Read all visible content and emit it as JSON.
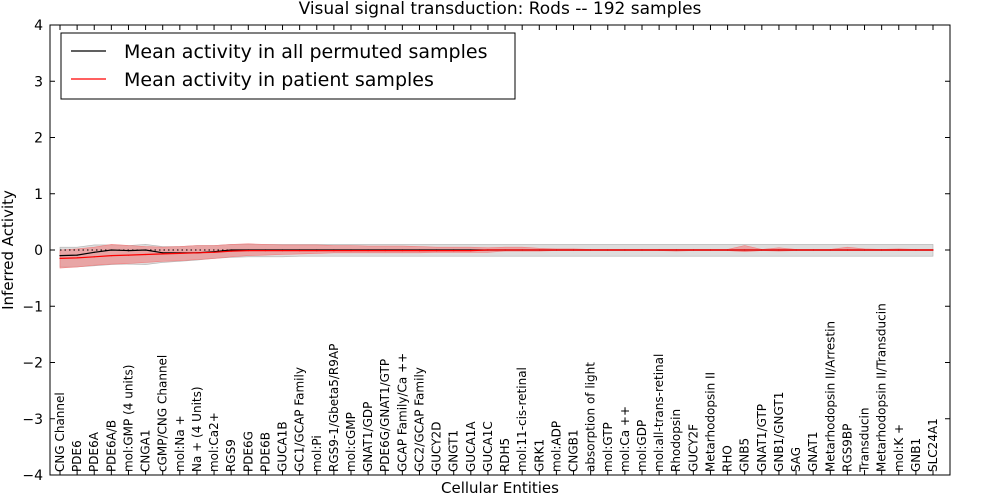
{
  "chart_data": {
    "type": "line",
    "title": "Visual signal transduction: Rods -- 192 samples",
    "xlabel": "Cellular Entities",
    "ylabel": "Inferred Activity",
    "ylim": [
      -4,
      4
    ],
    "yticks": [
      -4,
      -3,
      -2,
      -1,
      0,
      1,
      2,
      3,
      4
    ],
    "ytick_labels": [
      "−4",
      "−3",
      "−2",
      "−1",
      "0",
      "1",
      "2",
      "3",
      "4"
    ],
    "legend_position": "upper-left",
    "categories": [
      "CNG Channel",
      "PDE6",
      "PDE6A",
      "PDE6A/B",
      "mol:GMP (4 units)",
      "CNGA1",
      "cGMP/CNG Channel",
      "mol:Na +",
      "Na + (4 Units)",
      "mol:Ca2+",
      "RGS9",
      "PDE6G",
      "PDE6B",
      "GUCA1B",
      "GC1/GCAP Family",
      "mol:Pi",
      "RGS9-1/Gbeta5/R9AP",
      "mol:cGMP",
      "GNAT1/GDP",
      "PDE6G/GNAT1/GTP",
      "GCAP Family/Ca ++",
      "GC2/GCAP Family",
      "GUCY2D",
      "GNGT1",
      "GUCA1A",
      "GUCA1C",
      "RDH5",
      "mol:11-cis-retinal",
      "GRK1",
      "mol:ADP",
      "CNGB1",
      "absorption of light",
      "mol:GTP",
      "mol:Ca ++",
      "mol:GDP",
      "mol:all-trans-retinal",
      "Rhodopsin",
      "GUCY2F",
      "Metarhodopsin II",
      "RHO",
      "GNB5",
      "GNAT1/GTP",
      "GNB1/GNGT1",
      "SAG",
      "GNAT1",
      "Metarhodopsin II/Arrestin",
      "RGS9BP",
      "Transducin",
      "Metarhodopsin II/Transducin",
      "mol:K +",
      "GNB1",
      "SLC24A1"
    ],
    "series": [
      {
        "name": "Mean activity in all permuted samples",
        "color": "#000000",
        "values": [
          -0.1,
          -0.09,
          -0.04,
          0.0,
          -0.01,
          0.0,
          -0.05,
          -0.05,
          -0.05,
          -0.03,
          0.0,
          0.0,
          0.0,
          0.0,
          0.0,
          0.0,
          0.0,
          0.0,
          0.0,
          0.0,
          0.0,
          0.0,
          0.0,
          0.0,
          0.0,
          0.0,
          0.0,
          0.0,
          0.0,
          0.0,
          0.0,
          0.0,
          0.0,
          0.0,
          0.0,
          0.0,
          0.0,
          0.0,
          0.0,
          0.0,
          0.0,
          0.0,
          0.0,
          0.0,
          0.0,
          0.0,
          0.0,
          0.0,
          0.0,
          0.0,
          0.0,
          0.0
        ],
        "band_lower": [
          -0.3,
          -0.3,
          -0.28,
          -0.26,
          -0.25,
          -0.26,
          -0.22,
          -0.2,
          -0.18,
          -0.15,
          -0.13,
          -0.12,
          -0.12,
          -0.12,
          -0.11,
          -0.11,
          -0.11,
          -0.11,
          -0.11,
          -0.11,
          -0.11,
          -0.11,
          -0.11,
          -0.11,
          -0.11,
          -0.11,
          -0.11,
          -0.11,
          -0.11,
          -0.11,
          -0.11,
          -0.11,
          -0.11,
          -0.11,
          -0.11,
          -0.11,
          -0.11,
          -0.11,
          -0.11,
          -0.11,
          -0.11,
          -0.11,
          -0.11,
          -0.11,
          -0.11,
          -0.11,
          -0.11,
          -0.11,
          -0.11,
          -0.11,
          -0.11,
          -0.11
        ],
        "band_upper": [
          0.05,
          0.05,
          0.09,
          0.09,
          0.08,
          0.1,
          0.06,
          0.06,
          0.08,
          0.08,
          0.1,
          0.1,
          0.1,
          0.1,
          0.1,
          0.1,
          0.1,
          0.1,
          0.1,
          0.1,
          0.1,
          0.1,
          0.1,
          0.1,
          0.1,
          0.1,
          0.1,
          0.1,
          0.1,
          0.1,
          0.1,
          0.1,
          0.1,
          0.1,
          0.1,
          0.1,
          0.1,
          0.1,
          0.1,
          0.1,
          0.1,
          0.1,
          0.1,
          0.1,
          0.1,
          0.1,
          0.1,
          0.1,
          0.1,
          0.1,
          0.1,
          0.1
        ],
        "band_color": "#b3b3b3"
      },
      {
        "name": "Mean activity in patient samples",
        "color": "#ff0000",
        "values": [
          -0.15,
          -0.14,
          -0.12,
          -0.1,
          -0.09,
          -0.08,
          -0.07,
          -0.06,
          -0.05,
          -0.04,
          -0.02,
          -0.01,
          -0.01,
          -0.01,
          -0.01,
          -0.01,
          -0.01,
          -0.01,
          -0.01,
          -0.01,
          -0.01,
          -0.01,
          -0.01,
          -0.01,
          -0.01,
          0.0,
          0.0,
          0.0,
          0.0,
          0.0,
          0.0,
          0.0,
          0.0,
          0.0,
          0.0,
          0.0,
          0.0,
          0.0,
          0.0,
          0.0,
          0.0,
          0.0,
          0.0,
          0.0,
          0.0,
          0.0,
          0.0,
          0.0,
          0.0,
          0.0,
          0.0,
          0.0
        ],
        "band_lower": [
          -0.32,
          -0.3,
          -0.27,
          -0.25,
          -0.24,
          -0.22,
          -0.2,
          -0.19,
          -0.17,
          -0.15,
          -0.12,
          -0.1,
          -0.09,
          -0.08,
          -0.07,
          -0.06,
          -0.05,
          -0.05,
          -0.05,
          -0.05,
          -0.05,
          -0.05,
          -0.04,
          -0.04,
          -0.04,
          -0.04,
          -0.02,
          -0.02,
          -0.02,
          -0.01,
          -0.01,
          -0.01,
          -0.01,
          -0.01,
          -0.01,
          -0.01,
          -0.02,
          -0.01,
          -0.01,
          -0.01,
          -0.03,
          -0.01,
          -0.02,
          -0.01,
          -0.01,
          -0.01,
          -0.01,
          -0.01,
          -0.01,
          -0.01,
          -0.01,
          -0.01
        ],
        "band_upper": [
          0.0,
          0.02,
          0.05,
          0.1,
          0.08,
          0.06,
          0.05,
          0.06,
          0.08,
          0.08,
          0.1,
          0.11,
          0.1,
          0.09,
          0.09,
          0.09,
          0.08,
          0.08,
          0.07,
          0.07,
          0.07,
          0.06,
          0.05,
          0.05,
          0.05,
          0.04,
          0.05,
          0.05,
          0.03,
          0.02,
          0.02,
          0.01,
          0.01,
          0.01,
          0.01,
          0.01,
          0.01,
          0.01,
          0.01,
          0.01,
          0.08,
          0.01,
          0.04,
          0.01,
          0.01,
          0.01,
          0.05,
          0.02,
          0.01,
          0.02,
          0.01,
          0.01
        ],
        "band_color": "#f08080"
      }
    ],
    "reference_line": {
      "value": 0,
      "style": "dotted"
    }
  }
}
